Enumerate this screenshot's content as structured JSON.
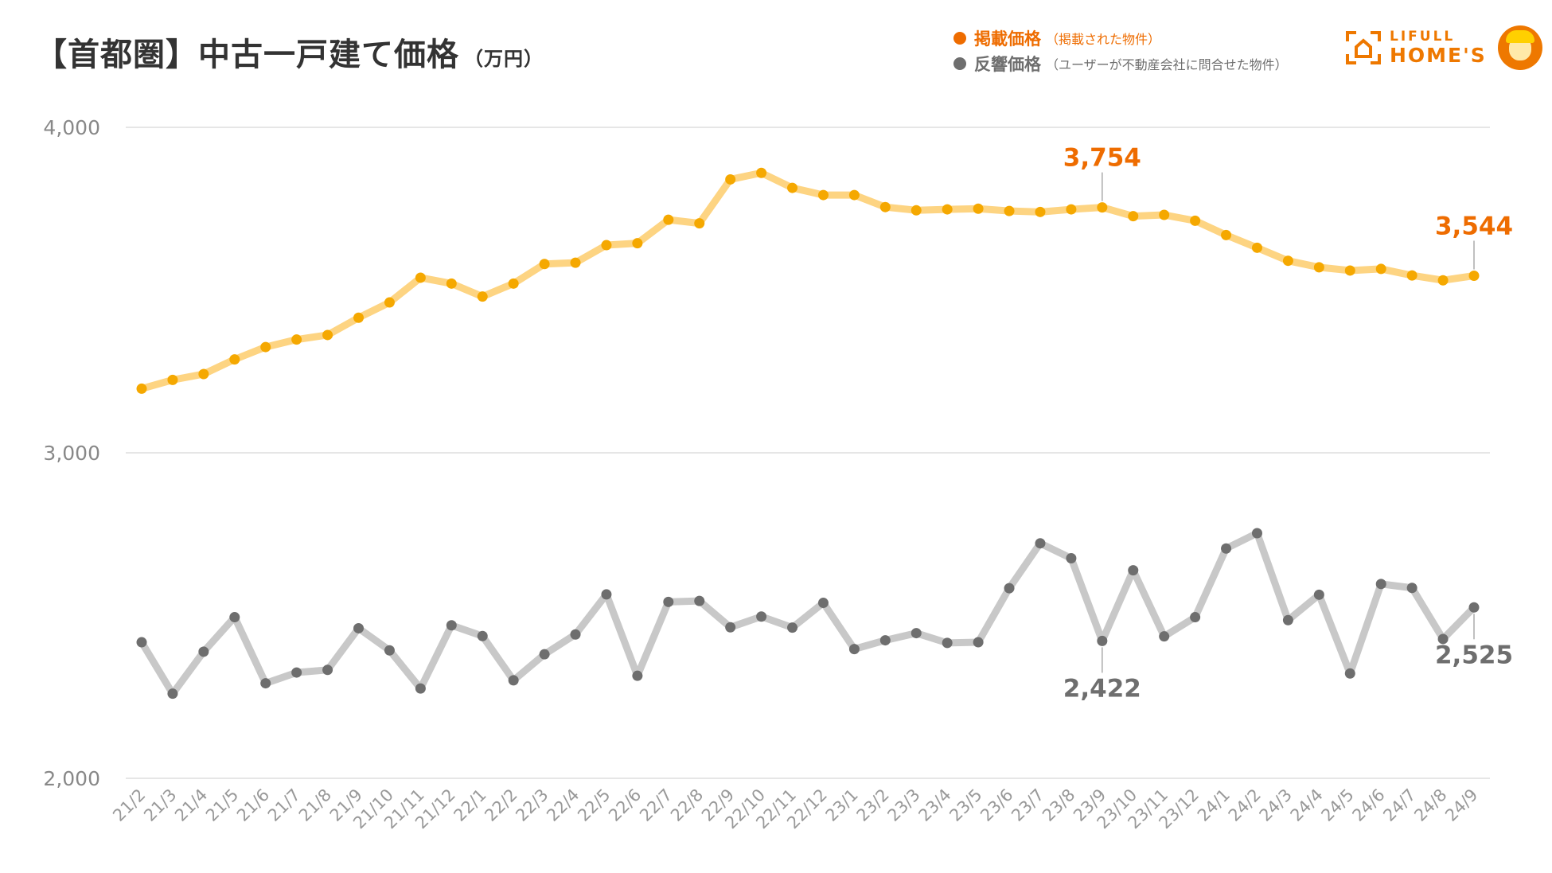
{
  "header": {
    "title": "【首都圏】中古一戸建て価格",
    "unit": "（万円）"
  },
  "legend": {
    "listing": {
      "name": "掲載価格",
      "note": "（掲載された物件）",
      "color": "#ee6c00"
    },
    "inquiry": {
      "name": "反響価格",
      "note": "（ユーザーが不動産会社に問合せた物件）",
      "color": "#6e6e6e"
    }
  },
  "logo": {
    "line1": "LIFULL",
    "line2": "HOME'S",
    "icon": "house-frame-icon",
    "mascot": "mascot-icon",
    "color": "#ee7800"
  },
  "chart_data": {
    "type": "line",
    "title": "【首都圏】中古一戸建て価格",
    "ylabel": "（万円）",
    "ylim": [
      2000,
      4000
    ],
    "yticks": [
      2000,
      3000,
      4000
    ],
    "ytick_labels": [
      "2,000",
      "3,000",
      "4,000"
    ],
    "grid": true,
    "legend_position": "top-right",
    "categories": [
      "21/2",
      "21/3",
      "21/4",
      "21/5",
      "21/6",
      "21/7",
      "21/8",
      "21/9",
      "21/10",
      "21/11",
      "21/12",
      "22/1",
      "22/2",
      "22/3",
      "22/4",
      "22/5",
      "22/6",
      "22/7",
      "22/8",
      "22/9",
      "22/10",
      "22/11",
      "22/12",
      "23/1",
      "23/2",
      "23/3",
      "23/4",
      "23/5",
      "23/6",
      "23/7",
      "23/8",
      "23/9",
      "23/10",
      "23/11",
      "23/12",
      "24/1",
      "24/2",
      "24/3",
      "24/4",
      "24/5",
      "24/6",
      "24/7",
      "24/8",
      "24/9"
    ],
    "series": [
      {
        "name": "掲載価格",
        "color": "#f5a800",
        "line_color": "#fdd482",
        "values": [
          3197,
          3224,
          3242,
          3287,
          3325,
          3348,
          3362,
          3415,
          3462,
          3538,
          3520,
          3480,
          3520,
          3580,
          3584,
          3638,
          3644,
          3716,
          3705,
          3840,
          3860,
          3814,
          3792,
          3792,
          3755,
          3745,
          3748,
          3750,
          3743,
          3740,
          3748,
          3754,
          3727,
          3731,
          3713,
          3669,
          3630,
          3590,
          3570,
          3560,
          3565,
          3545,
          3530,
          3544
        ],
        "annotations": [
          {
            "category": "23/9",
            "value": 3754,
            "label": "3,754"
          },
          {
            "category": "24/9",
            "value": 3544,
            "label": "3,544"
          }
        ]
      },
      {
        "name": "反響価格",
        "color": "#6e6e6e",
        "line_color": "#c8c8c8",
        "values": [
          2418,
          2260,
          2389,
          2495,
          2292,
          2325,
          2333,
          2461,
          2393,
          2276,
          2470,
          2437,
          2301,
          2381,
          2442,
          2565,
          2315,
          2542,
          2545,
          2464,
          2497,
          2463,
          2539,
          2397,
          2424,
          2446,
          2416,
          2418,
          2584,
          2722,
          2676,
          2422,
          2639,
          2436,
          2495,
          2706,
          2753,
          2486,
          2564,
          2322,
          2597,
          2585,
          2428,
          2525
        ],
        "annotations": [
          {
            "category": "23/9",
            "value": 2422,
            "label": "2,422"
          },
          {
            "category": "24/9",
            "value": 2525,
            "label": "2,525"
          }
        ]
      }
    ]
  }
}
